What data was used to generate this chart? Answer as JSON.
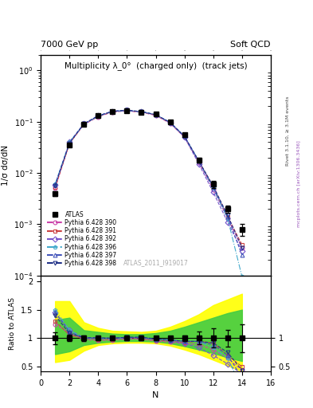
{
  "title_top": "7000 GeV pp",
  "title_right": "Soft QCD",
  "main_title": "Multiplicity λ_0°  (charged only)  (track jets)",
  "xlabel": "N",
  "ylabel_main": "1/σ dσ/dN",
  "ylabel_ratio": "Ratio to ATLAS",
  "right_label": "Rivet 3.1.10, ≥ 3.1M events",
  "right_label2": "mcplots.cern.ch [arXiv:1306.3436]",
  "watermark": "ATLAS_2011_I919017",
  "xlim": [
    0,
    16
  ],
  "ylim_main": [
    0.0001,
    2.0
  ],
  "ylim_ratio": [
    0.42,
    2.1
  ],
  "atlas_x": [
    1,
    2,
    3,
    4,
    5,
    6,
    7,
    8,
    9,
    10,
    11,
    12,
    13,
    14
  ],
  "atlas_y": [
    0.004,
    0.035,
    0.09,
    0.13,
    0.16,
    0.165,
    0.155,
    0.14,
    0.1,
    0.055,
    0.018,
    0.006,
    0.002,
    0.0008
  ],
  "atlas_yerr": [
    0.0004,
    0.002,
    0.004,
    0.005,
    0.006,
    0.006,
    0.005,
    0.005,
    0.004,
    0.003,
    0.002,
    0.001,
    0.0003,
    0.0002
  ],
  "series": [
    {
      "label": "Pythia 6.428 390",
      "color": "#cc44aa",
      "marker": "o",
      "linestyle": "--",
      "y": [
        0.005,
        0.038,
        0.088,
        0.125,
        0.155,
        0.163,
        0.153,
        0.133,
        0.093,
        0.05,
        0.016,
        0.0048,
        0.0013,
        0.00035
      ]
    },
    {
      "label": "Pythia 6.428 391",
      "color": "#cc4444",
      "marker": "s",
      "linestyle": "--",
      "y": [
        0.0052,
        0.037,
        0.09,
        0.127,
        0.157,
        0.165,
        0.155,
        0.135,
        0.095,
        0.051,
        0.017,
        0.0055,
        0.0014,
        0.0004
      ]
    },
    {
      "label": "Pythia 6.428 392",
      "color": "#7755cc",
      "marker": "D",
      "linestyle": "--",
      "y": [
        0.0058,
        0.04,
        0.091,
        0.13,
        0.16,
        0.167,
        0.156,
        0.137,
        0.096,
        0.05,
        0.015,
        0.0042,
        0.0011,
        0.0003
      ]
    },
    {
      "label": "Pythia 6.428 396",
      "color": "#44aacc",
      "marker": "p",
      "linestyle": "-.",
      "y": [
        0.006,
        0.04,
        0.09,
        0.129,
        0.158,
        0.166,
        0.157,
        0.137,
        0.097,
        0.052,
        0.017,
        0.005,
        0.0013,
        9.5e-05
      ]
    },
    {
      "label": "Pythia 6.428 397",
      "color": "#4455bb",
      "marker": "^",
      "linestyle": "--",
      "y": [
        0.0058,
        0.039,
        0.09,
        0.13,
        0.16,
        0.167,
        0.157,
        0.137,
        0.097,
        0.052,
        0.017,
        0.0053,
        0.0014,
        0.00025
      ]
    },
    {
      "label": "Pythia 6.428 398",
      "color": "#223388",
      "marker": "v",
      "linestyle": "--",
      "y": [
        0.0056,
        0.038,
        0.091,
        0.131,
        0.16,
        0.168,
        0.158,
        0.138,
        0.097,
        0.052,
        0.017,
        0.0055,
        0.0015,
        0.00035
      ]
    }
  ],
  "yellow_band_x": [
    1,
    2,
    3,
    4,
    5,
    6,
    7,
    8,
    9,
    10,
    11,
    12,
    13,
    14
  ],
  "yellow_band_lo": [
    0.58,
    0.62,
    0.78,
    0.88,
    0.91,
    0.92,
    0.92,
    0.91,
    0.87,
    0.8,
    0.72,
    0.62,
    0.52,
    0.42
  ],
  "yellow_band_hi": [
    1.65,
    1.65,
    1.28,
    1.18,
    1.13,
    1.12,
    1.11,
    1.13,
    1.2,
    1.3,
    1.42,
    1.58,
    1.68,
    1.78
  ],
  "green_band_lo": [
    0.72,
    0.77,
    0.88,
    0.92,
    0.94,
    0.95,
    0.95,
    0.94,
    0.91,
    0.86,
    0.8,
    0.74,
    0.66,
    0.6
  ],
  "green_band_hi": [
    1.32,
    1.36,
    1.14,
    1.11,
    1.08,
    1.07,
    1.07,
    1.09,
    1.13,
    1.2,
    1.28,
    1.36,
    1.44,
    1.5
  ]
}
